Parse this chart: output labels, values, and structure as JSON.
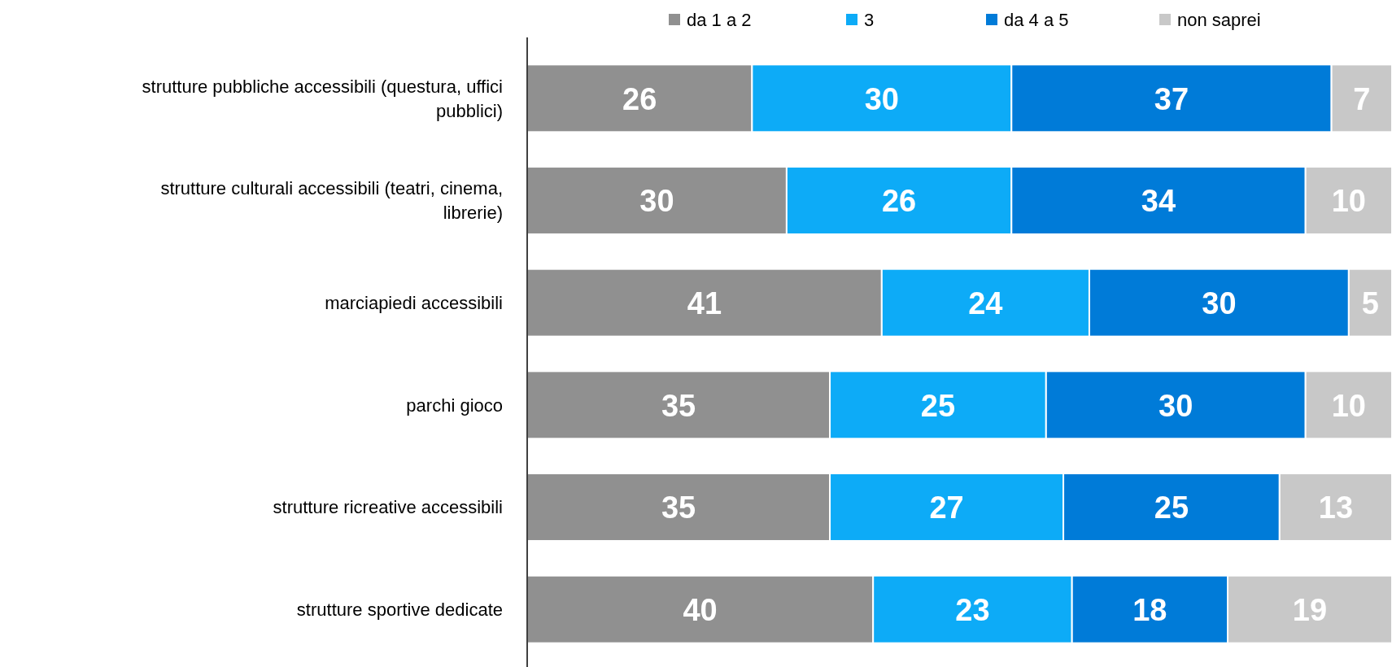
{
  "chart_data": {
    "type": "bar",
    "orientation": "horizontal",
    "stacked": true,
    "data_labels": true,
    "legend": "top",
    "xlim": [
      0,
      100
    ],
    "tick_labels": "y",
    "categories": [
      "strutture pubbliche accessibili (questura, uffici pubblici)",
      "strutture culturali accessibili (teatri, cinema, librerie)",
      "marciapiedi accessibili",
      "parchi gioco",
      "strutture ricreative accessibili",
      "strutture sportive dedicate"
    ],
    "series": [
      {
        "name": "da 1 a 2",
        "color": "#909090",
        "values": [
          26,
          30,
          41,
          35,
          35,
          40
        ]
      },
      {
        "name": "3",
        "color": "#0dabf7",
        "values": [
          30,
          26,
          24,
          25,
          27,
          23
        ]
      },
      {
        "name": "da 4 a 5",
        "color": "#007bd8",
        "values": [
          37,
          34,
          30,
          30,
          25,
          18
        ]
      },
      {
        "name": "non saprei",
        "color": "#c8c8c8",
        "values": [
          7,
          10,
          5,
          10,
          13,
          19
        ]
      }
    ]
  }
}
